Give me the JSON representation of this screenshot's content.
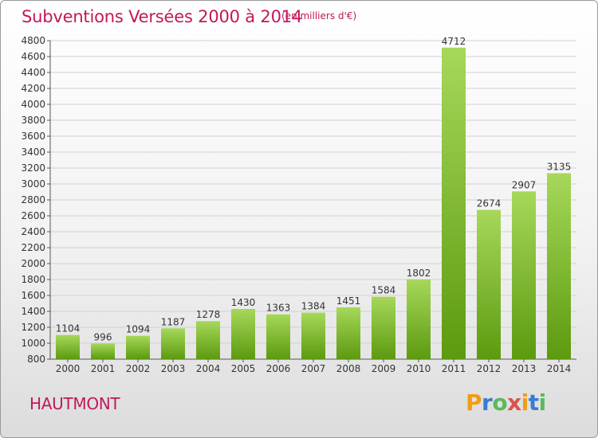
{
  "header": {
    "title": "Subventions Versées 2000 à 2014",
    "subtitle": "(en milliers d'€)"
  },
  "footer": {
    "commune": "HAUTMONT",
    "logo_letters": [
      "P",
      "r",
      "o",
      "x",
      "i",
      "t",
      "i"
    ],
    "logo_colors": [
      "#f39c12",
      "#3a7bd5",
      "#5cb85c",
      "#d9534f",
      "#f39c12",
      "#3a7bd5",
      "#5cb85c"
    ]
  },
  "colors": {
    "bar_light": "#a6d85a",
    "bar_dark": "#5c9a0f",
    "title": "#c2185b",
    "grid": "#d0d0d0"
  },
  "chart_data": {
    "type": "bar",
    "title": "Subventions Versées 2000 à 2014",
    "subtitle": "(en milliers d'€)",
    "categories": [
      "2000",
      "2001",
      "2002",
      "2003",
      "2004",
      "2005",
      "2006",
      "2007",
      "2008",
      "2009",
      "2010",
      "2011",
      "2012",
      "2013",
      "2014"
    ],
    "values": [
      1104,
      996,
      1094,
      1187,
      1278,
      1430,
      1363,
      1384,
      1451,
      1584,
      1802,
      4712,
      2674,
      2907,
      3135
    ],
    "ylim": [
      800,
      4800
    ],
    "yticks": [
      800,
      1000,
      1200,
      1400,
      1600,
      1800,
      2000,
      2200,
      2400,
      2600,
      2800,
      3000,
      3200,
      3400,
      3600,
      3800,
      4000,
      4200,
      4400,
      4600,
      4800
    ],
    "grid": true,
    "legend": "none"
  }
}
